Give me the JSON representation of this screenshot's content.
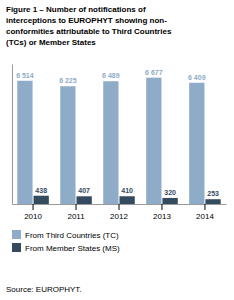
{
  "chart_data": {
    "type": "bar",
    "title": "Figure 1 – Number of notifications of\ninterceptions to EUROPHYT showing non-\nconformities attributable to Third Countries\n(TCs) or Member States",
    "categories": [
      "2010",
      "2011",
      "2012",
      "2013",
      "2014"
    ],
    "series": [
      {
        "name": "From Third Countries (TC)",
        "color": "#8eacc8",
        "values": [
          6514,
          6225,
          6489,
          6677,
          6409
        ],
        "value_labels": [
          "6 514",
          "6 225",
          "6 489",
          "6 677",
          "6 409"
        ]
      },
      {
        "name": "From Member States (MS)",
        "color": "#344a5e",
        "values": [
          438,
          407,
          410,
          320,
          253
        ]
      }
    ],
    "ylim": [
      0,
      7400
    ],
    "yticks": [],
    "tick_labels": "x",
    "grid": false,
    "legend": "bottom",
    "data_labels": true,
    "annotations": [
      "Source: EUROPHYT."
    ]
  }
}
